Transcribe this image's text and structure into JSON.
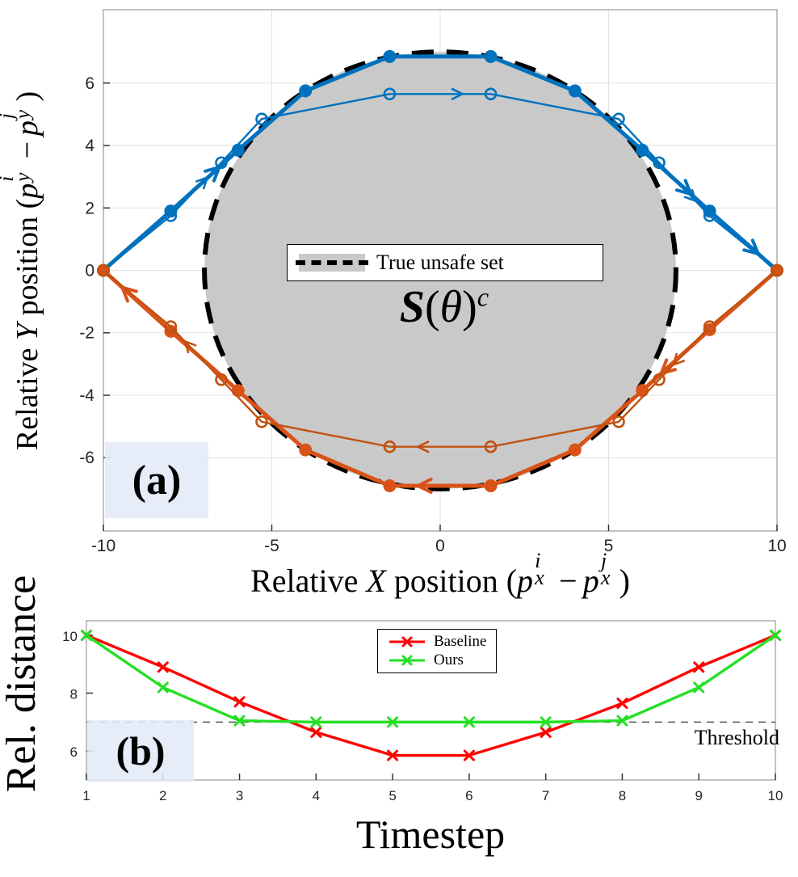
{
  "figure": {
    "panel_a_tag": "(a)",
    "panel_b_tag": "(b)"
  },
  "chart_data": [
    {
      "id": "relative-position-trajectories",
      "type": "line",
      "title": "",
      "xlabel": "Relative X position (p_x^i − p_x^j)",
      "ylabel": "Relative Y position (p_y^i − p_y^j)",
      "xlabel_html": "Relative <i>X</i> position (<i>p</i><span class=\"m-ss\"><span class=\"t\">i</span><span class=\"b\">x</span></span><span class=\"mo\">−</span><i>p</i><span class=\"m-ss\"><span class=\"t\">j</span><span class=\"b\">x</span></span>)",
      "ylabel_html": "Relative <i>Y</i> position (<i>p</i><span class=\"m-ss\"><span class=\"t\">i</span><span class=\"b\">y</span></span><span class=\"mo\">−</span><i>p</i><span class=\"m-ss\"><span class=\"t\">j</span><span class=\"b\">y</span></span>)",
      "xlim": [
        -10,
        10
      ],
      "ylim": [
        -8.35,
        8.35
      ],
      "xticks": [
        -10,
        -5,
        0,
        5,
        10
      ],
      "yticks": [
        -6,
        -4,
        -2,
        0,
        2,
        4,
        6
      ],
      "grid": true,
      "unsafe_set": {
        "shape": "circle",
        "cx": 0,
        "cy": 0,
        "radius": 7,
        "fill": "#c9c9c9",
        "edge_color": "#000000",
        "edge_style": "dashed",
        "label": "True unsafe set",
        "region_label": "S(θ)^c",
        "region_label_html": "<i class=\"cal\">S</i>(<i>θ</i>)<i class=\"supc\">c</i>"
      },
      "series": [
        {
          "name": "blue-trajectory-thick",
          "color": "#0072bd",
          "line_width": 5,
          "marker": "circle-filled",
          "x": [
            -10,
            -8,
            -6,
            -4,
            -1.5,
            1.5,
            4,
            6,
            8,
            10
          ],
          "y": [
            0,
            1.9,
            3.85,
            5.75,
            6.85,
            6.85,
            5.75,
            3.85,
            1.9,
            0
          ],
          "arrow_segments": [
            1,
            7,
            8
          ]
        },
        {
          "name": "blue-trajectory-thin",
          "color": "#0072bd",
          "line_width": 2.4,
          "marker": "circle-open",
          "x": [
            -10,
            -8,
            -6.5,
            -5.3,
            -1.5,
            1.5,
            5.3,
            6.5,
            8,
            10
          ],
          "y": [
            0,
            1.75,
            3.45,
            4.85,
            5.65,
            5.65,
            4.85,
            3.45,
            1.75,
            0
          ],
          "arrow_segments": [
            1,
            4,
            7
          ]
        },
        {
          "name": "orange-trajectory-thick",
          "color": "#d95319",
          "line_width": 5,
          "marker": "circle-filled",
          "x": [
            10,
            8,
            6,
            4,
            1.5,
            -1.5,
            -4,
            -6,
            -8,
            -10
          ],
          "y": [
            0,
            -1.9,
            -3.85,
            -5.75,
            -6.9,
            -6.9,
            -5.75,
            -3.85,
            -1.95,
            0
          ],
          "arrow_segments": [
            1,
            4,
            8
          ]
        },
        {
          "name": "orange-trajectory-thin",
          "color": "#c25110",
          "line_width": 2.4,
          "marker": "circle-open",
          "x": [
            10,
            8,
            6.5,
            5.3,
            1.5,
            -1.5,
            -5.3,
            -6.5,
            -8,
            -10
          ],
          "y": [
            0,
            -1.8,
            -3.5,
            -4.85,
            -5.65,
            -5.65,
            -4.85,
            -3.5,
            -1.8,
            0
          ],
          "arrow_segments": [
            1,
            4,
            7
          ]
        }
      ]
    },
    {
      "id": "relative-distance-vs-timestep",
      "type": "line",
      "title": "",
      "xlabel": "Timestep",
      "ylabel": "Rel. distance",
      "xlim": [
        1,
        10
      ],
      "ylim": [
        5,
        10.5
      ],
      "xticks": [
        1,
        2,
        3,
        4,
        5,
        6,
        7,
        8,
        9,
        10
      ],
      "yticks": [
        6,
        8,
        10
      ],
      "grid": false,
      "threshold": {
        "value": 7,
        "label": "Threshold",
        "style": "dashed",
        "color": "#555555"
      },
      "legend": {
        "position": "top-center"
      },
      "series": [
        {
          "name": "Baseline",
          "color": "#ff0000",
          "line_width": 3.4,
          "marker": "x",
          "x": [
            1,
            2,
            3,
            4,
            5,
            6,
            7,
            8,
            9,
            10
          ],
          "y": [
            10,
            8.9,
            7.7,
            6.65,
            5.85,
            5.85,
            6.65,
            7.65,
            8.9,
            10
          ]
        },
        {
          "name": "Ours",
          "color": "#24e024",
          "line_width": 3.4,
          "marker": "x",
          "x": [
            1,
            2,
            3,
            4,
            5,
            6,
            7,
            8,
            9,
            10
          ],
          "y": [
            10,
            8.2,
            7.05,
            7.0,
            7.0,
            7.0,
            7.0,
            7.05,
            8.2,
            10
          ]
        }
      ]
    }
  ]
}
